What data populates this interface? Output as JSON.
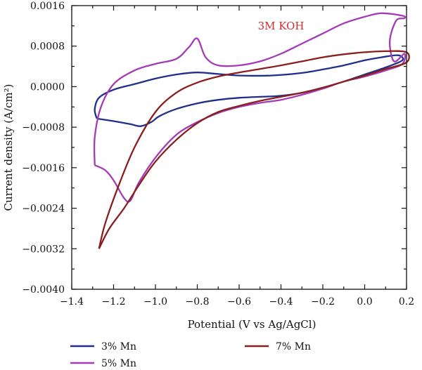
{
  "chart_data": {
    "type": "line",
    "xlabel": "Potential (V vs Ag/AgCl)",
    "ylabel": "Current density (A/cm²)",
    "xlim": [
      -1.4,
      0.2
    ],
    "ylim": [
      -0.004,
      0.0016
    ],
    "x_ticks": [
      -1.4,
      -1.2,
      -1.0,
      -0.8,
      -0.6,
      -0.4,
      -0.2,
      0.0,
      0.2
    ],
    "x_tick_labels": [
      "−1.4",
      "−1.2",
      "−1.0",
      "−0.8",
      "−0.6",
      "−0.4",
      "−0.2",
      "0.0",
      "0.2"
    ],
    "y_ticks": [
      -0.004,
      -0.0032,
      -0.0024,
      -0.0016,
      -0.0008,
      0.0,
      0.0008,
      0.0016
    ],
    "y_tick_labels": [
      "−0.0040",
      "−0.0032",
      "−0.0024",
      "−0.0016",
      "−0.0008",
      "0.0000",
      "0.0008",
      "0.0016"
    ],
    "grid": false,
    "legend_position": "bottom",
    "annotation": {
      "text": "3M KOH",
      "x": -0.4,
      "y": 0.0012,
      "color": "#d42a2a"
    },
    "series": [
      {
        "name": "3% Mn",
        "color": "#1f2f8a",
        "points": [
          [
            -1.28,
            -0.00063
          ],
          [
            -1.2,
            -0.00068
          ],
          [
            -1.12,
            -0.00074
          ],
          [
            -1.07,
            -0.00078
          ],
          [
            -1.02,
            -0.0007
          ],
          [
            -0.98,
            -0.00058
          ],
          [
            -0.9,
            -0.00044
          ],
          [
            -0.8,
            -0.00033
          ],
          [
            -0.7,
            -0.00026
          ],
          [
            -0.6,
            -0.00022
          ],
          [
            -0.5,
            -0.0002
          ],
          [
            -0.4,
            -0.00018
          ],
          [
            -0.3,
            -0.00012
          ],
          [
            -0.2,
            -2e-05
          ],
          [
            -0.1,
            0.0001
          ],
          [
            0.0,
            0.00024
          ],
          [
            0.1,
            0.00038
          ],
          [
            0.18,
            0.00052
          ],
          [
            0.16,
            0.00062
          ],
          [
            0.08,
            0.00058
          ],
          [
            0.0,
            0.00052
          ],
          [
            -0.1,
            0.00042
          ],
          [
            -0.2,
            0.00034
          ],
          [
            -0.3,
            0.00027
          ],
          [
            -0.45,
            0.00022
          ],
          [
            -0.6,
            0.00022
          ],
          [
            -0.7,
            0.00025
          ],
          [
            -0.8,
            0.00028
          ],
          [
            -0.9,
            0.00024
          ],
          [
            -1.0,
            0.00016
          ],
          [
            -1.1,
            5e-05
          ],
          [
            -1.2,
            -6e-05
          ],
          [
            -1.27,
            -0.00022
          ],
          [
            -1.29,
            -0.00045
          ],
          [
            -1.28,
            -0.00063
          ]
        ]
      },
      {
        "name": "5% Mn",
        "color": "#a23bb5",
        "points": [
          [
            -1.29,
            -0.00155
          ],
          [
            -1.24,
            -0.00165
          ],
          [
            -1.2,
            -0.00185
          ],
          [
            -1.15,
            -0.0022
          ],
          [
            -1.12,
            -0.00225
          ],
          [
            -1.08,
            -0.0019
          ],
          [
            -1.0,
            -0.0014
          ],
          [
            -0.9,
            -0.00095
          ],
          [
            -0.8,
            -0.0007
          ],
          [
            -0.7,
            -0.00052
          ],
          [
            -0.6,
            -0.0004
          ],
          [
            -0.5,
            -0.00032
          ],
          [
            -0.4,
            -0.00026
          ],
          [
            -0.3,
            -0.00016
          ],
          [
            -0.2,
            -4e-05
          ],
          [
            -0.1,
            0.0001
          ],
          [
            0.0,
            0.0002
          ],
          [
            0.1,
            0.00032
          ],
          [
            0.18,
            0.00045
          ],
          [
            0.19,
            0.00065
          ],
          [
            0.14,
            0.0005
          ],
          [
            0.12,
            0.0009
          ],
          [
            0.15,
            0.0013
          ],
          [
            0.19,
            0.00135
          ],
          [
            0.18,
            0.0014
          ],
          [
            0.08,
            0.00145
          ],
          [
            0.0,
            0.00138
          ],
          [
            -0.1,
            0.00125
          ],
          [
            -0.2,
            0.00105
          ],
          [
            -0.3,
            0.00085
          ],
          [
            -0.4,
            0.00065
          ],
          [
            -0.5,
            0.0005
          ],
          [
            -0.6,
            0.00042
          ],
          [
            -0.7,
            0.00042
          ],
          [
            -0.76,
            0.00058
          ],
          [
            -0.8,
            0.00095
          ],
          [
            -0.84,
            0.00078
          ],
          [
            -0.9,
            0.00055
          ],
          [
            -1.0,
            0.00045
          ],
          [
            -1.1,
            0.00032
          ],
          [
            -1.2,
            5e-05
          ],
          [
            -1.26,
            -0.0004
          ],
          [
            -1.29,
            -0.001
          ],
          [
            -1.29,
            -0.00155
          ]
        ]
      },
      {
        "name": "7% Mn",
        "color": "#8a1f1f",
        "points": [
          [
            -1.27,
            -0.0032
          ],
          [
            -1.22,
            -0.0028
          ],
          [
            -1.15,
            -0.0024
          ],
          [
            -1.08,
            -0.00195
          ],
          [
            -1.0,
            -0.00148
          ],
          [
            -0.9,
            -0.00105
          ],
          [
            -0.8,
            -0.00072
          ],
          [
            -0.7,
            -0.0005
          ],
          [
            -0.6,
            -0.00038
          ],
          [
            -0.5,
            -0.00028
          ],
          [
            -0.4,
            -0.0002
          ],
          [
            -0.3,
            -0.00012
          ],
          [
            -0.2,
            -2e-05
          ],
          [
            -0.1,
            0.0001
          ],
          [
            0.0,
            0.00022
          ],
          [
            0.1,
            0.00035
          ],
          [
            0.2,
            0.00048
          ],
          [
            0.2,
            0.00068
          ],
          [
            0.1,
            0.0007
          ],
          [
            0.0,
            0.00068
          ],
          [
            -0.1,
            0.00064
          ],
          [
            -0.2,
            0.00058
          ],
          [
            -0.3,
            0.0005
          ],
          [
            -0.4,
            0.00042
          ],
          [
            -0.5,
            0.00035
          ],
          [
            -0.6,
            0.00028
          ],
          [
            -0.7,
            0.0002
          ],
          [
            -0.8,
            8e-05
          ],
          [
            -0.9,
            -0.00012
          ],
          [
            -1.0,
            -0.0005
          ],
          [
            -1.1,
            -0.0012
          ],
          [
            -1.18,
            -0.002
          ],
          [
            -1.24,
            -0.0027
          ],
          [
            -1.27,
            -0.0032
          ]
        ]
      }
    ]
  }
}
